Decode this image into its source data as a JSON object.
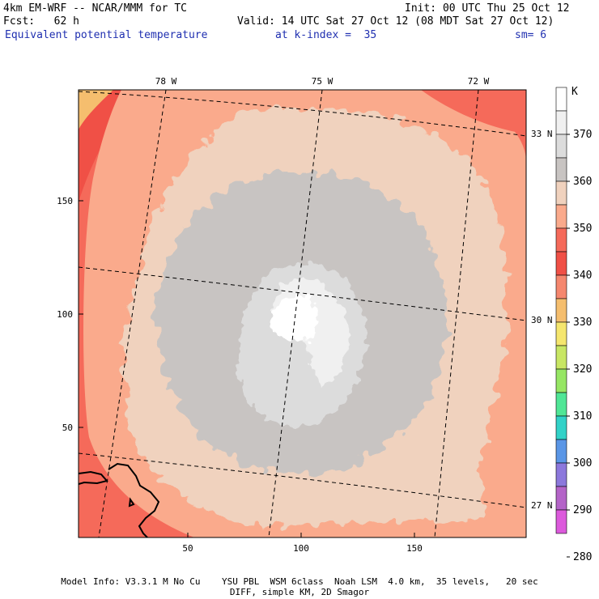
{
  "header": {
    "model": "4km EM-WRF -- NCAR/MMM for TC",
    "init": "Init: 00 UTC Thu 25 Oct 12",
    "fcst": "Fcst:   62 h",
    "valid": "Valid: 14 UTC Sat 27 Oct 12 (08 MDT Sat 27 Oct 12)",
    "field": "Equivalent potential temperature",
    "level": "at k-index =  35",
    "smooth": "sm= 6"
  },
  "map": {
    "lon_labels": [
      "78 W",
      "75 W",
      "72 W"
    ],
    "lat_labels": [
      "33 N",
      "30 N",
      "27 N"
    ],
    "x_ticks": [
      "50",
      "100",
      "150"
    ],
    "y_ticks": [
      "150",
      "100",
      "50"
    ]
  },
  "colorbar": {
    "unit": "K",
    "labels": [
      "370",
      "360",
      "350",
      "340",
      "330",
      "320",
      "310",
      "300",
      "290",
      "280"
    ],
    "colors": [
      "#ffffff",
      "#f0f0f0",
      "#dcdcdc",
      "#c8c4c2",
      "#f0d2be",
      "#faaa8c",
      "#f56a5a",
      "#f05046",
      "#f5876e",
      "#f5be6e",
      "#f5e66e",
      "#c8e664",
      "#96e664",
      "#50e696",
      "#32d2c8",
      "#5a96e6",
      "#8c78dc",
      "#b464c8",
      "#dc5adc"
    ]
  },
  "footer": {
    "line1": "Model Info: V3.3.1 M No Cu    YSU PBL  WSM 6class  Noah LSM  4.0 km,  35 levels,   20 sec",
    "line2": "DIFF, simple KM, 2D Smagor"
  }
}
